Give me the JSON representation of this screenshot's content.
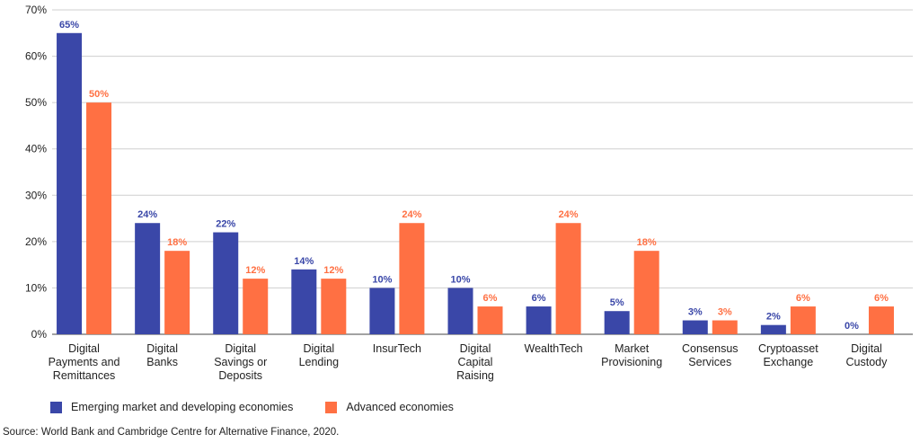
{
  "chart_data": {
    "type": "bar",
    "categories": [
      [
        "Digital",
        "Payments and",
        "Remittances"
      ],
      [
        "Digital",
        "Banks"
      ],
      [
        "Digital",
        "Savings or",
        "Deposits"
      ],
      [
        "Digital",
        "Lending"
      ],
      [
        "InsurTech"
      ],
      [
        "Digital",
        "Capital",
        "Raising"
      ],
      [
        "WealthTech"
      ],
      [
        "Market",
        "Provisioning"
      ],
      [
        "Consensus",
        "Services"
      ],
      [
        "Cryptoasset",
        "Exchange"
      ],
      [
        "Digital",
        "Custody"
      ]
    ],
    "series": [
      {
        "name": "Emerging market and developing economies",
        "color": "#3a47a8",
        "values": [
          65,
          24,
          22,
          14,
          10,
          10,
          6,
          5,
          3,
          2,
          0
        ],
        "labels": [
          "65%",
          "24%",
          "22%",
          "14%",
          "10%",
          "10%",
          "6%",
          "5%",
          "3%",
          "2%",
          "0%"
        ]
      },
      {
        "name": "Advanced economies",
        "color": "#ff7043",
        "values": [
          50,
          18,
          12,
          12,
          24,
          6,
          24,
          18,
          3,
          6,
          6
        ],
        "labels": [
          "50%",
          "18%",
          "12%",
          "12%",
          "24%",
          "6%",
          "24%",
          "18%",
          "3%",
          "6%",
          "6%"
        ]
      }
    ],
    "yticks": [
      "0%",
      "10%",
      "20%",
      "30%",
      "40%",
      "50%",
      "60%",
      "70%"
    ],
    "ylim": [
      0,
      70
    ],
    "grid": true,
    "legend_position": "bottom-left"
  },
  "source": "Source: World Bank and Cambridge Centre for Alternative Finance, 2020."
}
